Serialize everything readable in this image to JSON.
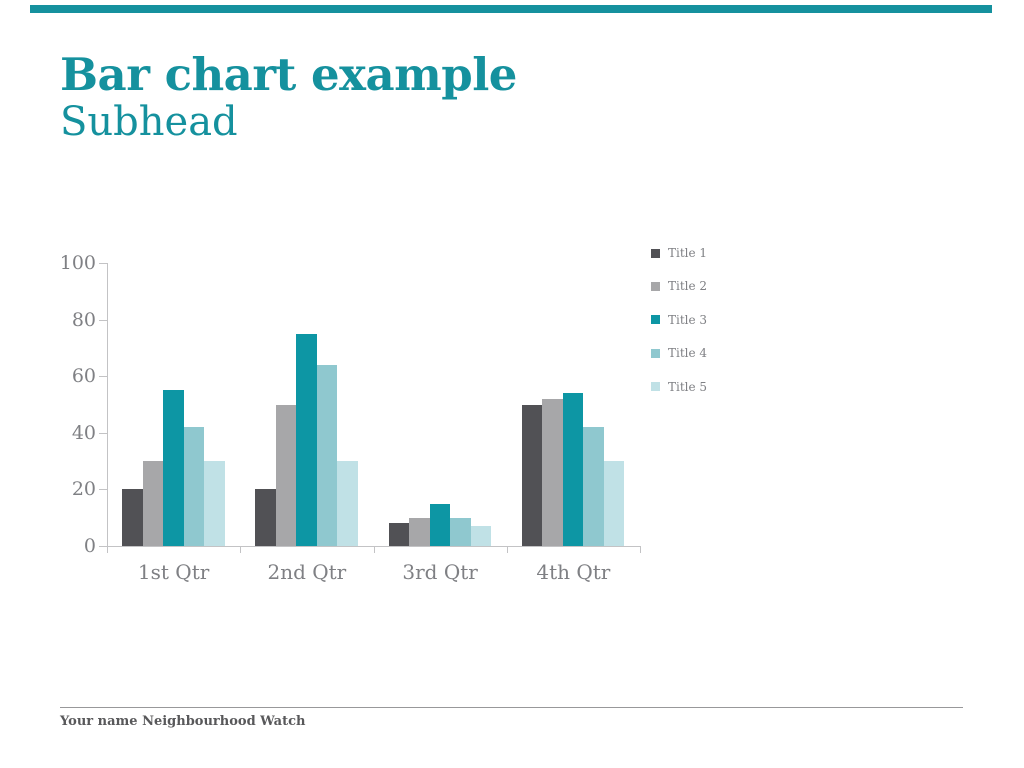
{
  "slide": {
    "title": "Bar chart example",
    "subtitle": "Subhead",
    "footer": "Your name Neighbourhood Watch",
    "accent_color": "#15919e",
    "background_color": "#ffffff"
  },
  "chart_data": {
    "type": "bar",
    "title": "",
    "categories": [
      "1st Qtr",
      "2nd Qtr",
      "3rd Qtr",
      "4th Qtr"
    ],
    "series": [
      {
        "name": "Title 1",
        "color": "#515155",
        "values": [
          20,
          20,
          8,
          50
        ]
      },
      {
        "name": "Title 2",
        "color": "#a7a7a9",
        "values": [
          30,
          50,
          10,
          52
        ]
      },
      {
        "name": "Title 3",
        "color": "#0d96a4",
        "values": [
          55,
          75,
          15,
          54
        ]
      },
      {
        "name": "Title 4",
        "color": "#8fc8cf",
        "values": [
          42,
          64,
          10,
          42
        ]
      },
      {
        "name": "Title 5",
        "color": "#c0e1e6",
        "values": [
          30,
          30,
          7,
          30
        ]
      }
    ],
    "xlabel": "",
    "ylabel": "",
    "ylim": [
      0,
      100
    ],
    "yticks": [
      0,
      20,
      40,
      60,
      80,
      100
    ],
    "legend_position": "right",
    "grid": false,
    "axis_color": "#c3c3c5",
    "label_color": "#7f8084"
  }
}
